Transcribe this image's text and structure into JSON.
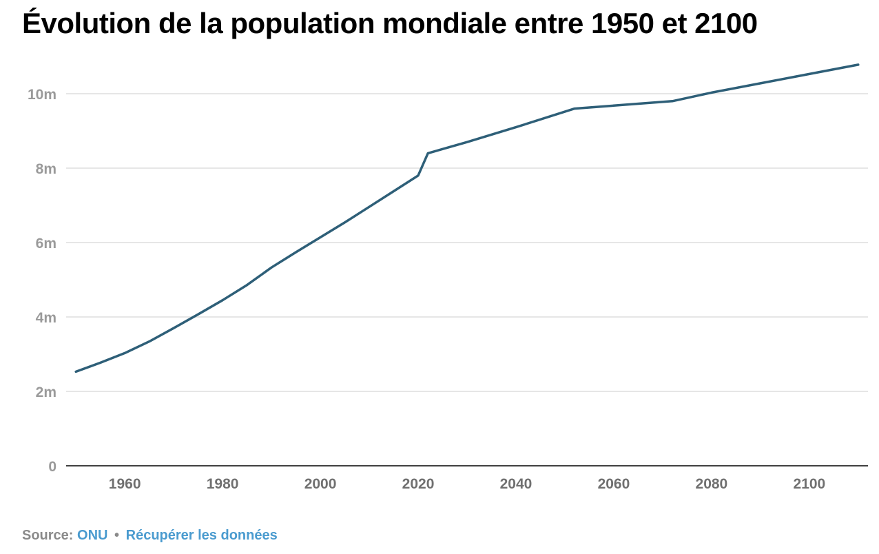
{
  "title": "Évolution de la population mondiale entre 1950 et 2100",
  "footer": {
    "source_label": "Source:",
    "source_link": "ONU",
    "separator": "•",
    "download_link": "Récupérer les données"
  },
  "colors": {
    "line": "#2e5f78",
    "grid": "#dddddd",
    "axis": "#000000",
    "ytick": "#9a9a9a",
    "xtick": "#707070",
    "link": "#4a9bcf"
  },
  "chart_data": {
    "type": "line",
    "title": "Évolution de la population mondiale entre 1950 et 2100",
    "xlabel": "",
    "ylabel": "",
    "xlim": [
      1948,
      2112
    ],
    "ylim": [
      0,
      11
    ],
    "grid": true,
    "x_ticks": [
      1960,
      1980,
      2000,
      2020,
      2040,
      2060,
      2080,
      2100
    ],
    "x_tick_labels": [
      "1960",
      "1980",
      "2000",
      "2020",
      "2040",
      "2060",
      "2080",
      "2100"
    ],
    "y_ticks": [
      0,
      2,
      4,
      6,
      8,
      10
    ],
    "y_tick_labels": [
      "0",
      "2m",
      "4m",
      "6m",
      "8m",
      "10m"
    ],
    "series": [
      {
        "x": [
          1950,
          1955,
          1960,
          1965,
          1970,
          1975,
          1980,
          1985,
          1990,
          1995,
          2000,
          2005,
          2010,
          2015,
          2020,
          2022,
          2030,
          2040,
          2052,
          2072,
          2080,
          2090,
          2100,
          2110
        ],
        "values": [
          2.53,
          2.77,
          3.03,
          3.34,
          3.7,
          4.07,
          4.45,
          4.86,
          5.33,
          5.74,
          6.14,
          6.54,
          6.96,
          7.38,
          7.8,
          8.4,
          8.7,
          9.1,
          9.6,
          9.8,
          10.03,
          10.28,
          10.53,
          10.78
        ]
      }
    ]
  }
}
